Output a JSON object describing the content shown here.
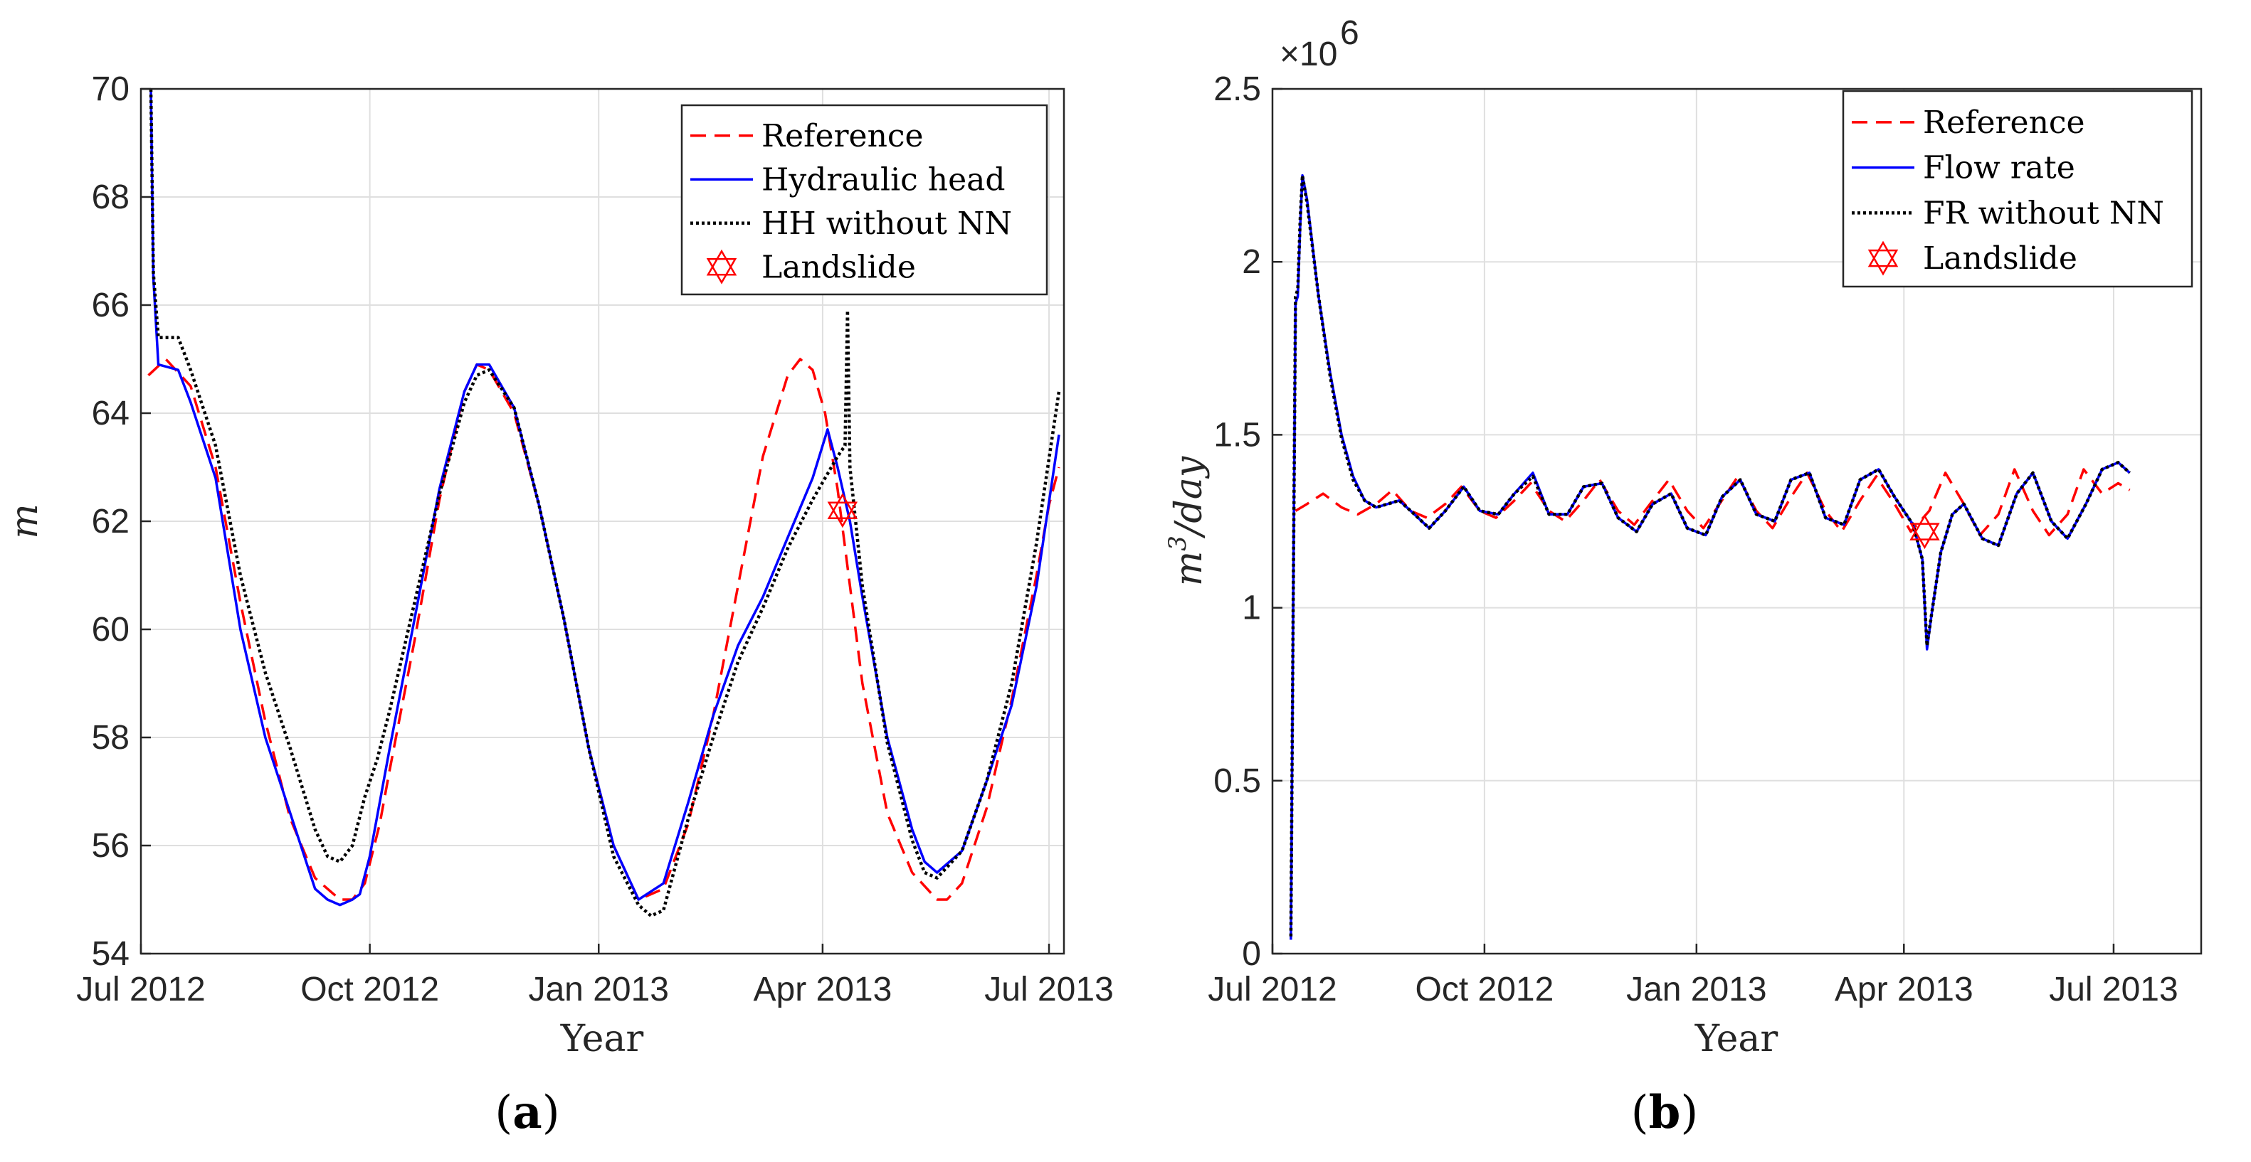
{
  "chart_data": [
    {
      "type": "line",
      "panel_label": "a",
      "xlabel": "Year",
      "ylabel": "m",
      "ylim": [
        54,
        70
      ],
      "yticks": [
        "54",
        "56",
        "58",
        "60",
        "62",
        "64",
        "66",
        "68",
        "70"
      ],
      "xlim_days": [
        0,
        371
      ],
      "xticks": [
        {
          "label": "Jul 2012",
          "day": 0
        },
        {
          "label": "Oct 2012",
          "day": 92
        },
        {
          "label": "Jan 2013",
          "day": 184
        },
        {
          "label": "Apr 2013",
          "day": 274
        },
        {
          "label": "Jul 2013",
          "day": 365
        }
      ],
      "legend": [
        "Reference",
        "Hydraulic head",
        "HH without NN",
        "Landslide"
      ],
      "series": [
        {
          "name": "Reference",
          "style": "dashed",
          "color": "#ff0000",
          "x": [
            3,
            10,
            20,
            30,
            40,
            50,
            60,
            70,
            80,
            85,
            90,
            96,
            100,
            110,
            120,
            130,
            135,
            140,
            150,
            160,
            170,
            180,
            190,
            200,
            210,
            220,
            230,
            240,
            250,
            260,
            265,
            270,
            275,
            280,
            290,
            300,
            310,
            320,
            324,
            330,
            340,
            350,
            360,
            365,
            369
          ],
          "y": [
            64.7,
            65.0,
            64.5,
            63.0,
            60.5,
            58.3,
            56.5,
            55.4,
            55.0,
            55.0,
            55.3,
            56.4,
            57.4,
            59.8,
            62.4,
            64.4,
            64.9,
            64.8,
            64.0,
            62.3,
            60.2,
            57.8,
            56.0,
            55.0,
            55.2,
            56.4,
            58.4,
            60.8,
            63.2,
            64.7,
            65.0,
            64.8,
            64.0,
            62.6,
            59.0,
            56.6,
            55.5,
            55.0,
            55.0,
            55.3,
            56.7,
            58.7,
            61.0,
            62.3,
            63.0
          ]
        },
        {
          "name": "Hydraulic head",
          "style": "solid",
          "color": "#0000ff",
          "x": [
            4,
            5,
            7,
            15,
            20,
            30,
            40,
            50,
            60,
            65,
            70,
            75,
            80,
            85,
            88,
            92,
            100,
            110,
            120,
            130,
            135,
            140,
            150,
            160,
            170,
            180,
            190,
            200,
            210,
            220,
            230,
            240,
            250,
            260,
            270,
            276,
            280,
            285,
            290,
            300,
            310,
            315,
            320,
            330,
            340,
            350,
            360,
            369
          ],
          "y": [
            70.0,
            66.5,
            64.9,
            64.8,
            64.2,
            62.8,
            60.0,
            58.0,
            56.6,
            55.9,
            55.2,
            55.0,
            54.9,
            55.0,
            55.1,
            55.8,
            57.8,
            60.2,
            62.6,
            64.4,
            64.9,
            64.9,
            64.1,
            62.3,
            60.2,
            57.8,
            56.0,
            55.0,
            55.3,
            56.8,
            58.4,
            59.7,
            60.6,
            61.7,
            62.8,
            63.7,
            63.0,
            62.0,
            60.6,
            58.0,
            56.3,
            55.7,
            55.5,
            55.9,
            57.2,
            58.6,
            60.8,
            63.6
          ]
        },
        {
          "name": "HH without NN",
          "style": "dotted",
          "color": "#000000",
          "x": [
            4,
            5,
            7,
            10,
            15,
            20,
            30,
            40,
            50,
            60,
            70,
            75,
            80,
            85,
            90,
            95,
            100,
            110,
            120,
            130,
            135,
            140,
            150,
            160,
            170,
            180,
            190,
            200,
            205,
            210,
            220,
            230,
            240,
            250,
            260,
            270,
            280,
            283,
            284,
            285,
            290,
            300,
            310,
            315,
            320,
            330,
            340,
            350,
            360,
            369
          ],
          "y": [
            70.0,
            66.6,
            65.4,
            65.4,
            65.4,
            64.8,
            63.4,
            61.0,
            59.2,
            57.8,
            56.3,
            55.8,
            55.7,
            56.0,
            56.9,
            57.6,
            58.5,
            60.5,
            62.5,
            64.2,
            64.7,
            64.8,
            64.1,
            62.3,
            60.2,
            57.8,
            55.8,
            54.9,
            54.7,
            54.8,
            56.5,
            58.0,
            59.4,
            60.4,
            61.5,
            62.4,
            63.2,
            63.4,
            65.9,
            63.0,
            60.8,
            57.9,
            56.1,
            55.5,
            55.4,
            55.9,
            57.2,
            59.0,
            61.6,
            64.4
          ]
        }
      ],
      "markers": [
        {
          "name": "Landslide",
          "style": "hexagram",
          "color": "#ff0000",
          "x": [
            282
          ],
          "y": [
            62.2
          ]
        }
      ]
    },
    {
      "type": "line",
      "panel_label": "b",
      "xlabel": "Year",
      "ylabel": "m3/day",
      "ylim": [
        0,
        2.5
      ],
      "yticks": [
        "0",
        "0.5",
        "1",
        "1.5",
        "2",
        "2.5"
      ],
      "y_exponent_label": "×10",
      "y_exponent": "6",
      "xlim_days": [
        0,
        403
      ],
      "xticks": [
        {
          "label": "Jul 2012",
          "day": 0
        },
        {
          "label": "Oct 2012",
          "day": 92
        },
        {
          "label": "Jan 2013",
          "day": 184
        },
        {
          "label": "Apr 2013",
          "day": 274
        },
        {
          "label": "Jul 2013",
          "day": 365
        }
      ],
      "legend": [
        "Reference",
        "Flow rate",
        "FR without NN",
        "Landslide"
      ],
      "series": [
        {
          "name": "Reference",
          "style": "dashed",
          "color": "#ff0000",
          "x": [
            10,
            15,
            22,
            30,
            37,
            45,
            52,
            60,
            67,
            75,
            82,
            90,
            97,
            105,
            112,
            120,
            127,
            135,
            142,
            150,
            157,
            165,
            172,
            180,
            187,
            195,
            202,
            210,
            217,
            225,
            232,
            240,
            247,
            255,
            262,
            270,
            277,
            285,
            292,
            300,
            307,
            315,
            322,
            330,
            337,
            345,
            352,
            360,
            367,
            372
          ],
          "y": [
            1.28,
            1.3,
            1.33,
            1.29,
            1.27,
            1.3,
            1.34,
            1.28,
            1.26,
            1.3,
            1.35,
            1.28,
            1.26,
            1.31,
            1.36,
            1.28,
            1.25,
            1.31,
            1.37,
            1.28,
            1.24,
            1.31,
            1.37,
            1.28,
            1.23,
            1.31,
            1.38,
            1.28,
            1.23,
            1.32,
            1.39,
            1.28,
            1.22,
            1.31,
            1.38,
            1.3,
            1.22,
            1.28,
            1.39,
            1.3,
            1.21,
            1.27,
            1.4,
            1.28,
            1.21,
            1.27,
            1.4,
            1.33,
            1.36,
            1.34
          ]
        },
        {
          "name": "Flow rate",
          "style": "solid",
          "color": "#0000ff",
          "x": [
            8,
            9,
            10,
            11,
            12,
            13,
            15,
            20,
            25,
            30,
            35,
            40,
            45,
            50,
            55,
            60,
            68,
            75,
            83,
            90,
            98,
            105,
            113,
            120,
            128,
            135,
            143,
            150,
            158,
            165,
            173,
            180,
            188,
            195,
            203,
            210,
            218,
            225,
            233,
            240,
            248,
            255,
            263,
            270,
            278,
            282,
            284,
            286,
            290,
            295,
            300,
            308,
            315,
            323,
            330,
            338,
            345,
            353,
            360,
            367,
            372
          ],
          "y": [
            0.04,
            1.0,
            1.88,
            1.9,
            2.1,
            2.25,
            2.18,
            1.9,
            1.68,
            1.5,
            1.38,
            1.31,
            1.29,
            1.3,
            1.31,
            1.28,
            1.23,
            1.28,
            1.35,
            1.28,
            1.27,
            1.33,
            1.39,
            1.27,
            1.27,
            1.35,
            1.36,
            1.26,
            1.22,
            1.3,
            1.33,
            1.23,
            1.21,
            1.32,
            1.37,
            1.27,
            1.25,
            1.37,
            1.39,
            1.26,
            1.24,
            1.37,
            1.4,
            1.32,
            1.24,
            1.14,
            0.88,
            0.98,
            1.16,
            1.27,
            1.3,
            1.2,
            1.18,
            1.33,
            1.39,
            1.25,
            1.2,
            1.3,
            1.4,
            1.42,
            1.39
          ]
        },
        {
          "name": "FR without NN",
          "style": "dotted",
          "color": "#000000",
          "x": [
            8,
            9,
            10,
            11,
            12,
            13,
            15,
            20,
            25,
            30,
            35,
            40,
            45,
            50,
            55,
            60,
            68,
            75,
            83,
            90,
            98,
            105,
            113,
            120,
            128,
            135,
            143,
            150,
            158,
            165,
            173,
            180,
            188,
            195,
            203,
            210,
            218,
            225,
            233,
            240,
            248,
            255,
            263,
            270,
            278,
            282,
            284,
            286,
            290,
            295,
            300,
            308,
            315,
            323,
            330,
            338,
            345,
            353,
            360,
            367,
            372
          ],
          "y": [
            0.05,
            1.0,
            1.9,
            1.92,
            2.12,
            2.25,
            2.17,
            1.9,
            1.67,
            1.49,
            1.37,
            1.31,
            1.29,
            1.3,
            1.31,
            1.28,
            1.23,
            1.28,
            1.35,
            1.28,
            1.27,
            1.33,
            1.38,
            1.27,
            1.27,
            1.35,
            1.36,
            1.26,
            1.22,
            1.3,
            1.33,
            1.23,
            1.21,
            1.32,
            1.37,
            1.27,
            1.25,
            1.37,
            1.39,
            1.26,
            1.24,
            1.37,
            1.4,
            1.32,
            1.24,
            1.14,
            0.89,
            0.98,
            1.16,
            1.27,
            1.3,
            1.2,
            1.18,
            1.33,
            1.39,
            1.25,
            1.2,
            1.3,
            1.4,
            1.42,
            1.39
          ]
        }
      ],
      "markers": [
        {
          "name": "Landslide",
          "style": "hexagram",
          "color": "#ff0000",
          "x": [
            283
          ],
          "y": [
            1.22
          ]
        }
      ]
    }
  ]
}
